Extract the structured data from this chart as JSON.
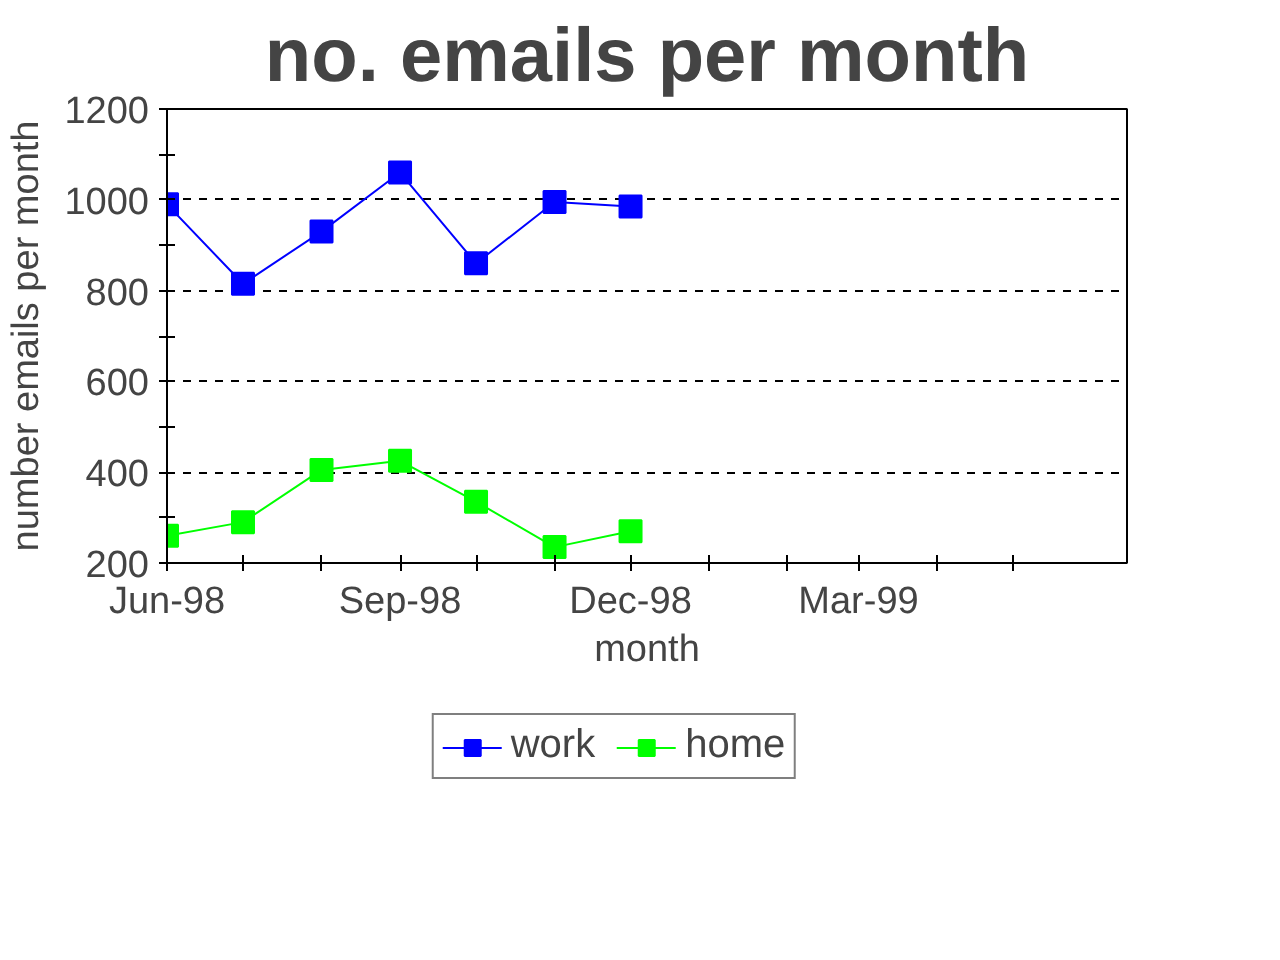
{
  "chart_data": {
    "type": "line",
    "title": "no. emails per month",
    "xlabel": "month",
    "ylabel": "number emails per month",
    "x": [
      "1998-06",
      "1998-07",
      "1998-08",
      "1998-09",
      "1998-10",
      "1998-11",
      "1998-12"
    ],
    "series": [
      {
        "name": "work",
        "color": "#0000ff",
        "values": [
          990,
          815,
          930,
          1060,
          860,
          995,
          985
        ]
      },
      {
        "name": "home",
        "color": "#00ff00",
        "values": [
          260,
          290,
          405,
          425,
          335,
          235,
          270
        ]
      }
    ],
    "xlim": [
      "1998-06-01",
      "1999-06-15"
    ],
    "xticks": [
      {
        "value": "1998-06",
        "label": "Jun-98"
      },
      {
        "value": "1998-07",
        "label": null
      },
      {
        "value": "1998-08",
        "label": null
      },
      {
        "value": "1998-09",
        "label": "Sep-98"
      },
      {
        "value": "1998-10",
        "label": null
      },
      {
        "value": "1998-11",
        "label": null
      },
      {
        "value": "1998-12",
        "label": "Dec-98"
      },
      {
        "value": "1999-01",
        "label": null
      },
      {
        "value": "1999-02",
        "label": null
      },
      {
        "value": "1999-03",
        "label": "Mar-99"
      },
      {
        "value": "1999-04",
        "label": null
      },
      {
        "value": "1999-05",
        "label": null
      }
    ],
    "ylim": [
      200,
      1200
    ],
    "yticks": [
      200,
      {
        "value": 300,
        "label": null
      },
      400,
      {
        "value": 500,
        "label": null
      },
      600,
      {
        "value": 700,
        "label": null
      },
      800,
      {
        "value": 900,
        "label": null
      },
      1000,
      {
        "value": 1100,
        "label": null
      },
      1200
    ],
    "grid": "y",
    "legend": "bottom",
    "marker": "square",
    "line_style": "solid"
  }
}
